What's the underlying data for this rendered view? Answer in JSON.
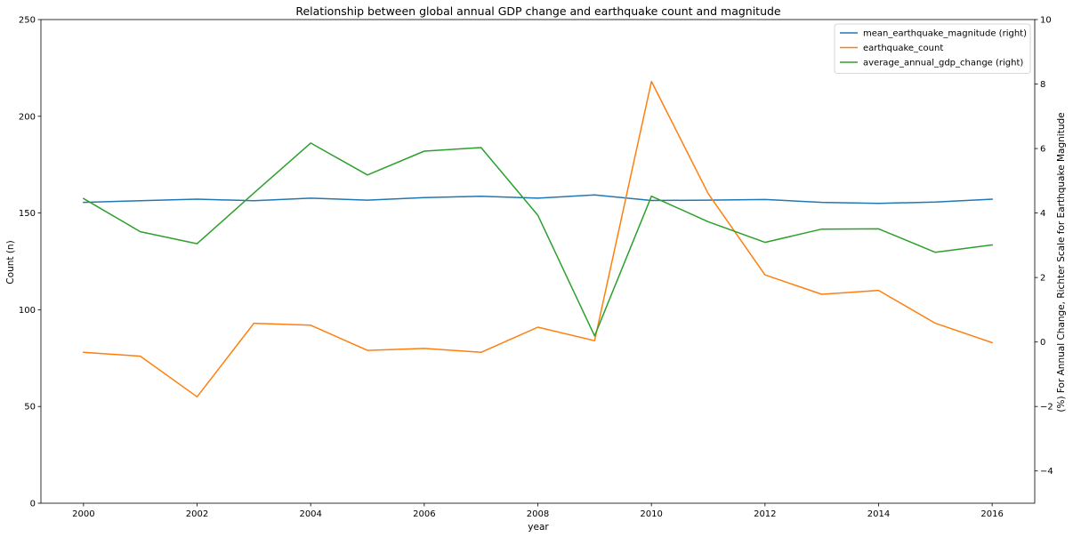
{
  "chart_data": {
    "type": "line",
    "title": "Relationship between global annual GDP change and earthquake count and magnitude",
    "xlabel": "year",
    "ylabel": "Count (n)",
    "ylabel_right": "(%) For Annual Change, Richter Scale for Earthquake Magnitude",
    "x": [
      2000,
      2001,
      2002,
      2003,
      2004,
      2005,
      2006,
      2007,
      2008,
      2009,
      2010,
      2011,
      2012,
      2013,
      2014,
      2015,
      2016
    ],
    "xlim": [
      1999.25,
      2016.75
    ],
    "ylim": [
      0,
      250
    ],
    "ylim_right": [
      -5,
      10
    ],
    "x_ticks": [
      2000,
      2002,
      2004,
      2006,
      2008,
      2010,
      2012,
      2014,
      2016
    ],
    "y_ticks": [
      0,
      50,
      100,
      150,
      200,
      250
    ],
    "y_ticks_right": [
      -4,
      -2,
      0,
      2,
      4,
      6,
      8,
      10
    ],
    "grid": false,
    "legend_position": "top-right",
    "series": [
      {
        "name": "mean_earthquake_magnitude (right)",
        "axis": "right",
        "color": "#1f77b4",
        "values": [
          4.33,
          4.38,
          4.43,
          4.38,
          4.46,
          4.4,
          4.48,
          4.52,
          4.46,
          4.56,
          4.39,
          4.4,
          4.42,
          4.33,
          4.3,
          4.34,
          4.43
        ]
      },
      {
        "name": "earthquake_count",
        "axis": "left",
        "color": "#ff7f0e",
        "values": [
          78,
          76,
          55,
          93,
          92,
          79,
          80,
          78,
          91,
          84,
          218,
          160,
          118,
          108,
          110,
          93,
          83
        ]
      },
      {
        "name": "average_annual_gdp_change (right)",
        "axis": "right",
        "color": "#2ca02c",
        "values": [
          4.45,
          3.42,
          3.05,
          4.62,
          6.17,
          5.18,
          5.92,
          6.03,
          3.93,
          0.19,
          4.52,
          3.73,
          3.09,
          3.5,
          3.51,
          2.78,
          3.01
        ]
      }
    ]
  }
}
